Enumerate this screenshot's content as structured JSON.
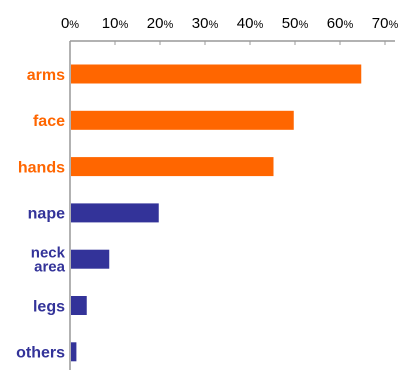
{
  "chart_data": {
    "type": "bar",
    "orientation": "horizontal",
    "title": "",
    "xlabel": "",
    "ylabel": "",
    "xlim": [
      0,
      70
    ],
    "x_ticks": [
      0,
      10,
      20,
      30,
      40,
      50,
      60,
      70
    ],
    "tick_suffix": "%",
    "axis_position": "top",
    "grid": false,
    "legend": "none",
    "categories": [
      {
        "label": "arms",
        "lines": [
          "arms"
        ],
        "value": 64.5,
        "color": "#ff6600"
      },
      {
        "label": "face",
        "lines": [
          "face"
        ],
        "value": 49.5,
        "color": "#ff6600"
      },
      {
        "label": "hands",
        "lines": [
          "hands"
        ],
        "value": 45.0,
        "color": "#ff6600"
      },
      {
        "label": "nape",
        "lines": [
          "nape"
        ],
        "value": 19.5,
        "color": "#333399"
      },
      {
        "label": "neck area",
        "lines": [
          "neck",
          "area"
        ],
        "value": 8.5,
        "color": "#333399"
      },
      {
        "label": "legs",
        "lines": [
          "legs"
        ],
        "value": 3.5,
        "color": "#333399"
      },
      {
        "label": "others",
        "lines": [
          "others"
        ],
        "value": 1.2,
        "color": "#333399"
      }
    ],
    "colors": {
      "highlight": "#ff6600",
      "base": "#333399",
      "axis": "#999999"
    }
  }
}
